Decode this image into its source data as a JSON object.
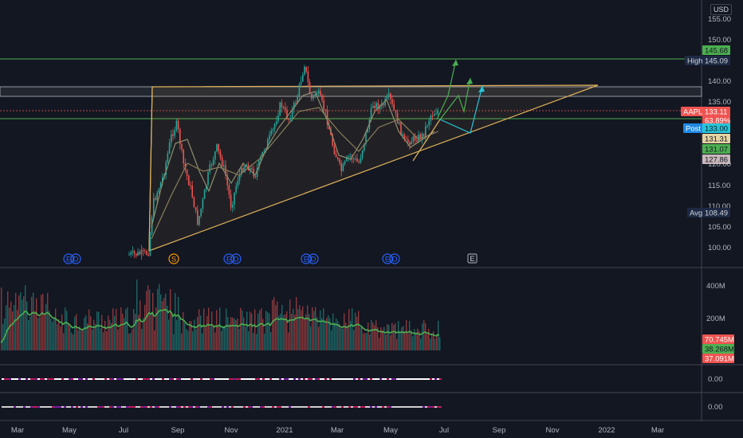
{
  "currency": "USD",
  "price_axis": {
    "ticks": [
      "155.00",
      "150.00",
      "145.00",
      "140.00",
      "135.00",
      "130.00",
      "125.00",
      "120.00",
      "115.00",
      "110.00",
      "105.00",
      "100.00"
    ],
    "range": [
      96,
      158
    ]
  },
  "time_axis": {
    "labels": [
      "Mar",
      "May",
      "Jul",
      "Sep",
      "Nov",
      "2021",
      "Mar",
      "May",
      "Jul",
      "Sep",
      "Nov",
      "2022",
      "Mar"
    ]
  },
  "price_tags": {
    "level_top": "145.68",
    "high_label": "High",
    "high_value": "145.09",
    "symbol": "AAPL",
    "last_price": "133.11",
    "change_pct": "63.89%",
    "post_label": "Post",
    "post_value": "133.00",
    "ma1": "131.31",
    "level_bottom": "131.07",
    "ma2": "127.86",
    "avg_label": "Avg",
    "avg_value": "108.49"
  },
  "event_markers": [
    "E",
    "D",
    "S",
    "E",
    "D",
    "E",
    "D",
    "E",
    "D",
    "E"
  ],
  "volume_axis": {
    "ticks": [
      "400M",
      "200M"
    ]
  },
  "volume_tags": {
    "v1": "70.745M",
    "v2": "38.268M",
    "v3": "37.091M"
  },
  "oscillators": {
    "pane1_value": "0.00",
    "pane2_value": "0.00"
  },
  "colors": {
    "background": "#131722",
    "up": "#26a69a",
    "down": "#ef5350",
    "level": "#4caf50",
    "pattern": "#e0b15a",
    "post": "#2196f3"
  }
}
